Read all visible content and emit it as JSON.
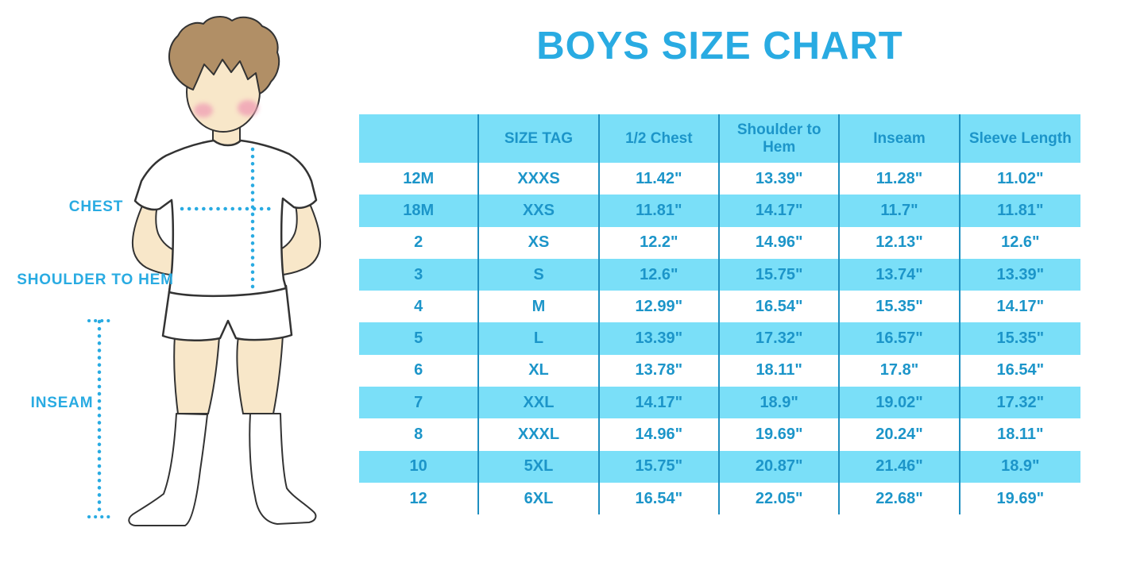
{
  "page_title": "BOYS SIZE CHART",
  "colors": {
    "accent_blue": "#29ABE2",
    "table_text_blue": "#1C95C9",
    "table_row_alt": "#7ADFF8",
    "table_divider": "#1E8FC0",
    "skin": "#F8E7C9",
    "hair_brown": "#B18F66",
    "blush_pink": "#F0A3B6",
    "outline": "#333333"
  },
  "figure": {
    "labels": {
      "chest": "CHEST",
      "shoulder_to_hem": "SHOULDER TO HEM",
      "inseam": "INSEAM"
    }
  },
  "chart_data": {
    "type": "table",
    "title": "BOYS SIZE CHART",
    "columns": [
      "",
      "SIZE TAG",
      "1/2 Chest",
      "Shoulder to Hem",
      "Inseam",
      "Sleeve Length"
    ],
    "rows": [
      [
        "12M",
        "XXXS",
        "11.42\"",
        "13.39\"",
        "11.28\"",
        "11.02\""
      ],
      [
        "18M",
        "XXS",
        "11.81\"",
        "14.17\"",
        "11.7\"",
        "11.81\""
      ],
      [
        "2",
        "XS",
        "12.2\"",
        "14.96\"",
        "12.13\"",
        "12.6\""
      ],
      [
        "3",
        "S",
        "12.6\"",
        "15.75\"",
        "13.74\"",
        "13.39\""
      ],
      [
        "4",
        "M",
        "12.99\"",
        "16.54\"",
        "15.35\"",
        "14.17\""
      ],
      [
        "5",
        "L",
        "13.39\"",
        "17.32\"",
        "16.57\"",
        "15.35\""
      ],
      [
        "6",
        "XL",
        "13.78\"",
        "18.11\"",
        "17.8\"",
        "16.54\""
      ],
      [
        "7",
        "XXL",
        "14.17\"",
        "18.9\"",
        "19.02\"",
        "17.32\""
      ],
      [
        "8",
        "XXXL",
        "14.96\"",
        "19.69\"",
        "20.24\"",
        "18.11\""
      ],
      [
        "10",
        "5XL",
        "15.75\"",
        "20.87\"",
        "21.46\"",
        "18.9\""
      ],
      [
        "12",
        "6XL",
        "16.54\"",
        "22.05\"",
        "22.68\"",
        "19.69\""
      ]
    ]
  }
}
